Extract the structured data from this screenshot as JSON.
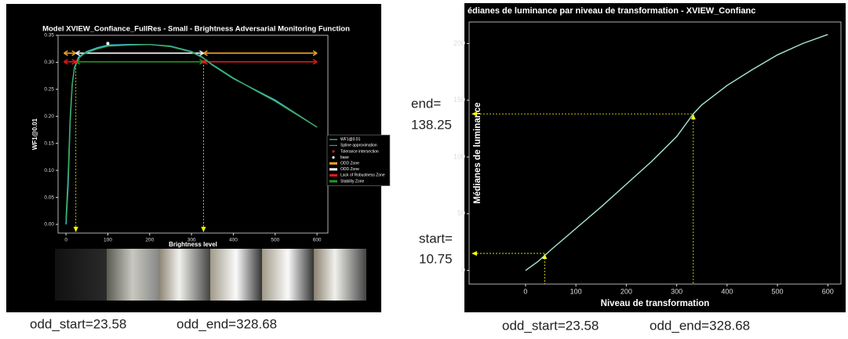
{
  "chart_data": [
    {
      "type": "line",
      "title": "Model XVIEW_Confiance_FullRes - Small - Brightness Adversarial Monitoring Function",
      "xlabel": "Brightness level",
      "ylabel": "WF1@0.01",
      "x": [
        0,
        5,
        10,
        15,
        20,
        25,
        30,
        40,
        50,
        75,
        100,
        150,
        200,
        250,
        300,
        325,
        350,
        400,
        450,
        500,
        550,
        600
      ],
      "series": [
        {
          "name": "WF1@0.01",
          "color": "#40c4d8",
          "values": [
            0,
            0.07,
            0.19,
            0.26,
            0.29,
            0.3,
            0.31,
            0.315,
            0.32,
            0.327,
            0.332,
            0.333,
            0.333,
            0.33,
            0.32,
            0.31,
            0.295,
            0.27,
            0.25,
            0.23,
            0.205,
            0.18
          ]
        },
        {
          "name": "Spline approximation",
          "color": "#3aa860",
          "values": [
            0.01,
            0.09,
            0.2,
            0.26,
            0.288,
            0.298,
            0.307,
            0.314,
            0.318,
            0.325,
            0.33,
            0.332,
            0.333,
            0.329,
            0.319,
            0.309,
            0.296,
            0.271,
            0.249,
            0.228,
            0.204,
            0.18
          ]
        }
      ],
      "points": [
        {
          "name": "Tolerance intersection",
          "color": "#e8191b",
          "x": [
            23.58,
            328.68
          ],
          "y": [
            0.301,
            0.301
          ]
        },
        {
          "name": "base",
          "color": "#ffffff",
          "x": [
            100
          ],
          "y": [
            0.335
          ]
        }
      ],
      "zones": [
        {
          "name": "ODD Zone",
          "color": "#f5a623",
          "y": 0.317,
          "spans": [
            [
              -5,
              23.58
            ],
            [
              328.68,
              600
            ]
          ]
        },
        {
          "name": "ODD Zone",
          "color": "#ffffff",
          "y": 0.317,
          "spans": [
            [
              23.58,
              328.68
            ]
          ]
        },
        {
          "name": "Lack of Robustness Zone",
          "color": "#e8191b",
          "y": 0.301,
          "spans": [
            [
              -5,
              23.58
            ],
            [
              328.68,
              600
            ]
          ]
        },
        {
          "name": "Stability Zone",
          "color": "#1fa01f",
          "y": 0.301,
          "spans": [
            [
              23.58,
              328.68
            ]
          ]
        }
      ],
      "guides": {
        "style": "drop",
        "color": "#ffff00",
        "points": [
          {
            "x": 23.58,
            "y": 0.301
          },
          {
            "x": 328.68,
            "y": 0.301
          }
        ]
      },
      "xlim": [
        -19,
        626
      ],
      "ylim": [
        -0.016,
        0.35
      ],
      "xticks": [
        0,
        100,
        200,
        300,
        400,
        500,
        600
      ],
      "yticks": [
        {
          "value": 0,
          "label": "0.00"
        },
        {
          "value": 0.05,
          "label": "0.05"
        },
        {
          "value": 0.1,
          "label": "0.10"
        },
        {
          "value": 0.15,
          "label": "0.15"
        },
        {
          "value": 0.2,
          "label": "0.20"
        },
        {
          "value": 0.25,
          "label": "0.25"
        },
        {
          "value": 0.3,
          "label": "0.30"
        },
        {
          "value": 0.35,
          "label": "0.35"
        }
      ],
      "legend": "right"
    },
    {
      "type": "line",
      "title": "édianes de luminance par niveau de transformation - XVIEW_Confianc",
      "xlabel": "Niveau de transformation",
      "ylabel": "Médianes de luminance",
      "x": [
        0,
        25,
        50,
        100,
        150,
        200,
        250,
        300,
        333,
        350,
        400,
        450,
        500,
        550,
        600
      ],
      "series": [
        {
          "color": "#a8e6cf",
          "values": [
            0,
            8,
            18,
            37,
            56,
            76,
            96,
            118,
            138,
            146,
            163,
            177,
            190,
            200,
            208
          ]
        }
      ],
      "guides": {
        "style": "cross",
        "color": "#ffff00",
        "points": [
          {
            "x": 333,
            "y": 138
          },
          {
            "x": 38,
            "y": 15
          }
        ]
      },
      "xlim": [
        -112,
        626
      ],
      "ylim": [
        -12,
        219
      ],
      "xticks": [
        0,
        100,
        200,
        300,
        400,
        500,
        600
      ],
      "yticks": [
        0,
        50,
        100,
        150,
        200
      ]
    }
  ],
  "side_notes": {
    "end": [
      "end=",
      "138.25"
    ],
    "start": [
      "start=",
      "10.75"
    ]
  },
  "footer": {
    "left": [
      "odd_start=23.58",
      "odd_end=328.68"
    ],
    "right": [
      "odd_start=23.58",
      "odd_end=328.68"
    ]
  }
}
